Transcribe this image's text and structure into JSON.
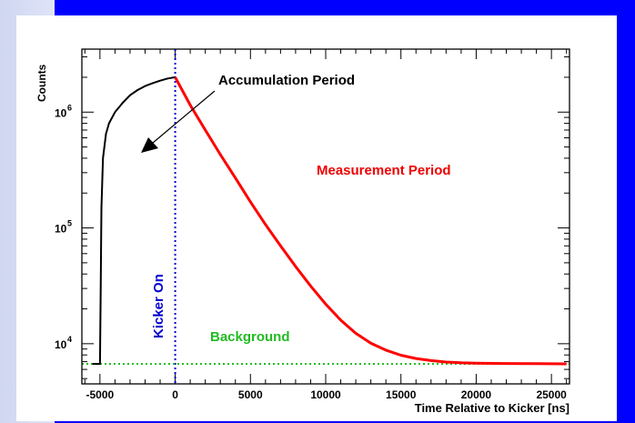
{
  "chart_data": {
    "type": "line",
    "xlabel": "Time Relative to Kicker [ns]",
    "ylabel": "Counts",
    "yscale": "log",
    "xlim": [
      -6200,
      26200
    ],
    "ylim": [
      4500,
      3500000
    ],
    "xticks": [
      -5000,
      0,
      5000,
      10000,
      15000,
      20000,
      25000
    ],
    "xtick_labels": [
      "-5000",
      "0",
      "5000",
      "10000",
      "15000",
      "20000",
      "25000"
    ],
    "yticks": [
      10000,
      100000,
      1000000
    ],
    "ytick_labels": [
      "10",
      "10",
      "10"
    ],
    "ytick_exponents": [
      "4",
      "5",
      "6"
    ],
    "grid": false,
    "series": [
      {
        "color": "#000000",
        "x": [
          -5500,
          -5000,
          -4950,
          -4900,
          -4800,
          -4600,
          -4400,
          -4000,
          -3500,
          -3000,
          -2500,
          -2000,
          -1500,
          -1000,
          -500,
          0
        ],
        "y": [
          6700,
          6700,
          30000,
          150000,
          400000,
          650000,
          800000,
          1000000,
          1200000,
          1400000,
          1550000,
          1680000,
          1780000,
          1870000,
          1950000,
          2000000
        ]
      },
      {
        "color": "#ff0000",
        "x": [
          0,
          1000,
          2000,
          3000,
          4000,
          5000,
          6000,
          7000,
          8000,
          9000,
          10000,
          11000,
          12000,
          13000,
          14000,
          15000,
          16000,
          17000,
          18000,
          19000,
          20000,
          22000,
          24000,
          26000
        ],
        "y": [
          2000000,
          1150000,
          700000,
          430000,
          270000,
          168000,
          107000,
          70000,
          46500,
          31500,
          22000,
          16000,
          12300,
          10100,
          8800,
          7950,
          7450,
          7150,
          6950,
          6850,
          6800,
          6750,
          6720,
          6700
        ]
      }
    ],
    "reference_lines": [
      {
        "label": "Kicker On",
        "orientation": "vertical",
        "x": 0,
        "color": "#0000cc",
        "style": "dotted"
      },
      {
        "label": "Background",
        "orientation": "horizontal",
        "y": 6700,
        "color": "#22bb22",
        "style": "dotted"
      }
    ],
    "annotations": [
      {
        "text": "Accumulation Period",
        "color": "#000000"
      },
      {
        "text": "Measurement Period",
        "color": "#ee0000"
      }
    ]
  }
}
